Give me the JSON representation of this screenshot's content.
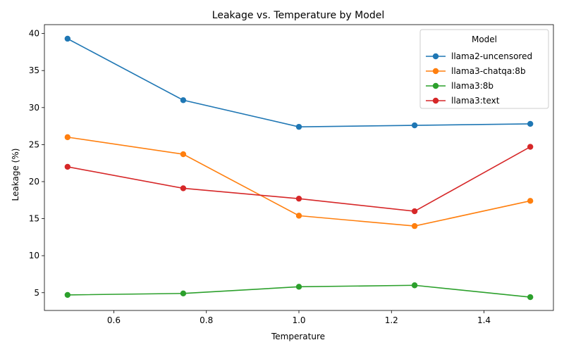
{
  "chart_data": {
    "type": "line",
    "title": "Leakage vs. Temperature by Model",
    "xlabel": "Temperature",
    "ylabel": "Leakage (%)",
    "xlim": [
      0.45,
      1.55
    ],
    "ylim": [
      2.6,
      41.2
    ],
    "xticks": [
      0.6,
      0.8,
      1.0,
      1.2,
      1.4
    ],
    "xtick_labels": [
      "0.6",
      "0.8",
      "1.0",
      "1.2",
      "1.4"
    ],
    "yticks": [
      5,
      10,
      15,
      20,
      25,
      30,
      35,
      40
    ],
    "ytick_labels": [
      "5",
      "10",
      "15",
      "20",
      "25",
      "30",
      "35",
      "40"
    ],
    "grid": false,
    "legend": {
      "title": "Model",
      "placement": "top-right"
    },
    "x": [
      0.5,
      0.75,
      1.0,
      1.25,
      1.5
    ],
    "series": [
      {
        "name": "llama2-uncensored",
        "color": "#1f77b4",
        "values": [
          39.3,
          31.0,
          27.4,
          27.6,
          27.8
        ]
      },
      {
        "name": "llama3-chatqa:8b",
        "color": "#ff7f0e",
        "values": [
          26.0,
          23.7,
          15.4,
          14.0,
          17.4
        ]
      },
      {
        "name": "llama3:8b",
        "color": "#2ca02c",
        "values": [
          4.7,
          4.9,
          5.8,
          6.0,
          4.4
        ]
      },
      {
        "name": "llama3:text",
        "color": "#d62728",
        "values": [
          22.0,
          19.1,
          17.7,
          16.0,
          24.7
        ]
      }
    ]
  }
}
